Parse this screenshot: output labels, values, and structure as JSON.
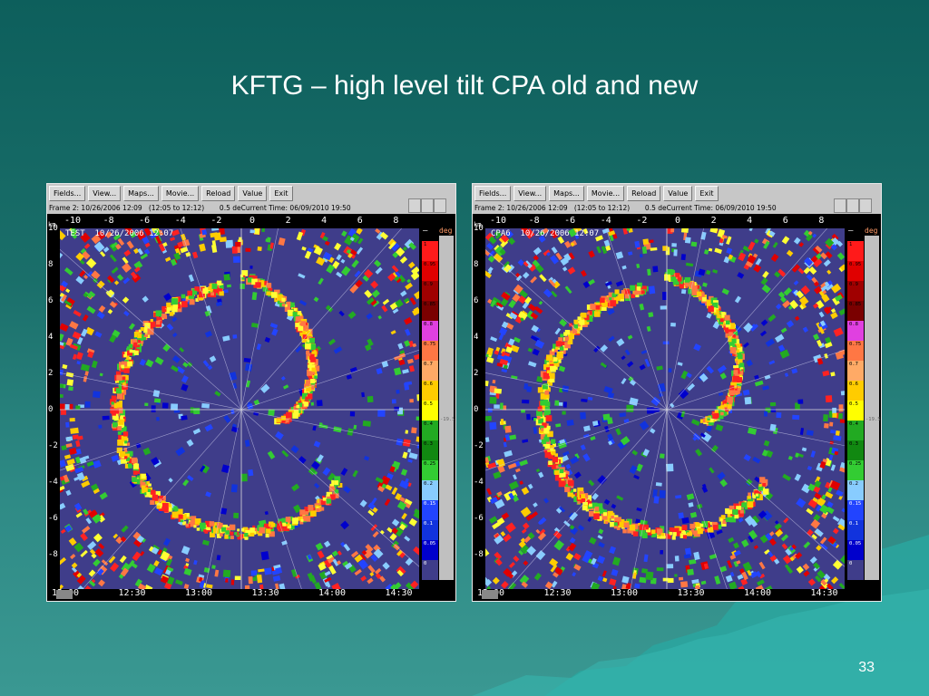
{
  "slide": {
    "title": "KFTG – high level tilt CPA old and new",
    "number": "33"
  },
  "menu_labels": [
    "Fields...",
    "View...",
    "Maps...",
    "Movie...",
    "Reload",
    "Value",
    "Exit"
  ],
  "windows": [
    {
      "frame_text": "Frame 2: 10/26/2006 12:09",
      "range_text": "(12:05 to 12:12)",
      "elev_text": "0.5 de",
      "current_time": "Current Time: 06/09/2010 19:50",
      "overlay": "TEST  10/26/2006 12:07"
    },
    {
      "frame_text": "Frame 2: 10/26/2006 12:09",
      "range_text": "(12:05 to 12:12)",
      "elev_text": "0.5 de",
      "current_time": "Current Time: 06/09/2010 19:50",
      "overlay": "CPA6  10/26/2006 12:07"
    }
  ],
  "x_ticks": [
    "-10",
    "-8",
    "-6",
    "-4",
    "-2",
    "0",
    "2",
    "4",
    "6",
    "8"
  ],
  "y_ticks": [
    "10",
    "8",
    "6",
    "4",
    "2",
    "0",
    "-2",
    "-4",
    "-6",
    "-8"
  ],
  "y_unit": "km",
  "legend": {
    "unit": "deg",
    "dash": "–",
    "side_value": "-19.5",
    "labels": [
      "1",
      "0.95",
      "0.9",
      "0.85",
      "0.8",
      "0.75",
      "0.7",
      "0.6",
      "0.5",
      "0.4",
      "0.3",
      "0.25",
      "0.2",
      "0.15",
      "0.1",
      "0.05",
      "0"
    ],
    "colors": [
      "#ff1a1a",
      "#e00000",
      "#a00000",
      "#7a0000",
      "#e040e0",
      "#ff7744",
      "#ffaa66",
      "#ffcc00",
      "#ffff00",
      "#22aa22",
      "#118811",
      "#33cc33",
      "#88ccff",
      "#2244ff",
      "#1133dd",
      "#0000cc",
      "#3f3d8a"
    ]
  },
  "time_labels": [
    "12:00",
    "12:30",
    "13:00",
    "13:30",
    "14:00",
    "14:30"
  ],
  "colors": {
    "background": "#1a6f6a",
    "radar_background": "#3f3d8a",
    "window_chrome": "#c7c7c7"
  }
}
